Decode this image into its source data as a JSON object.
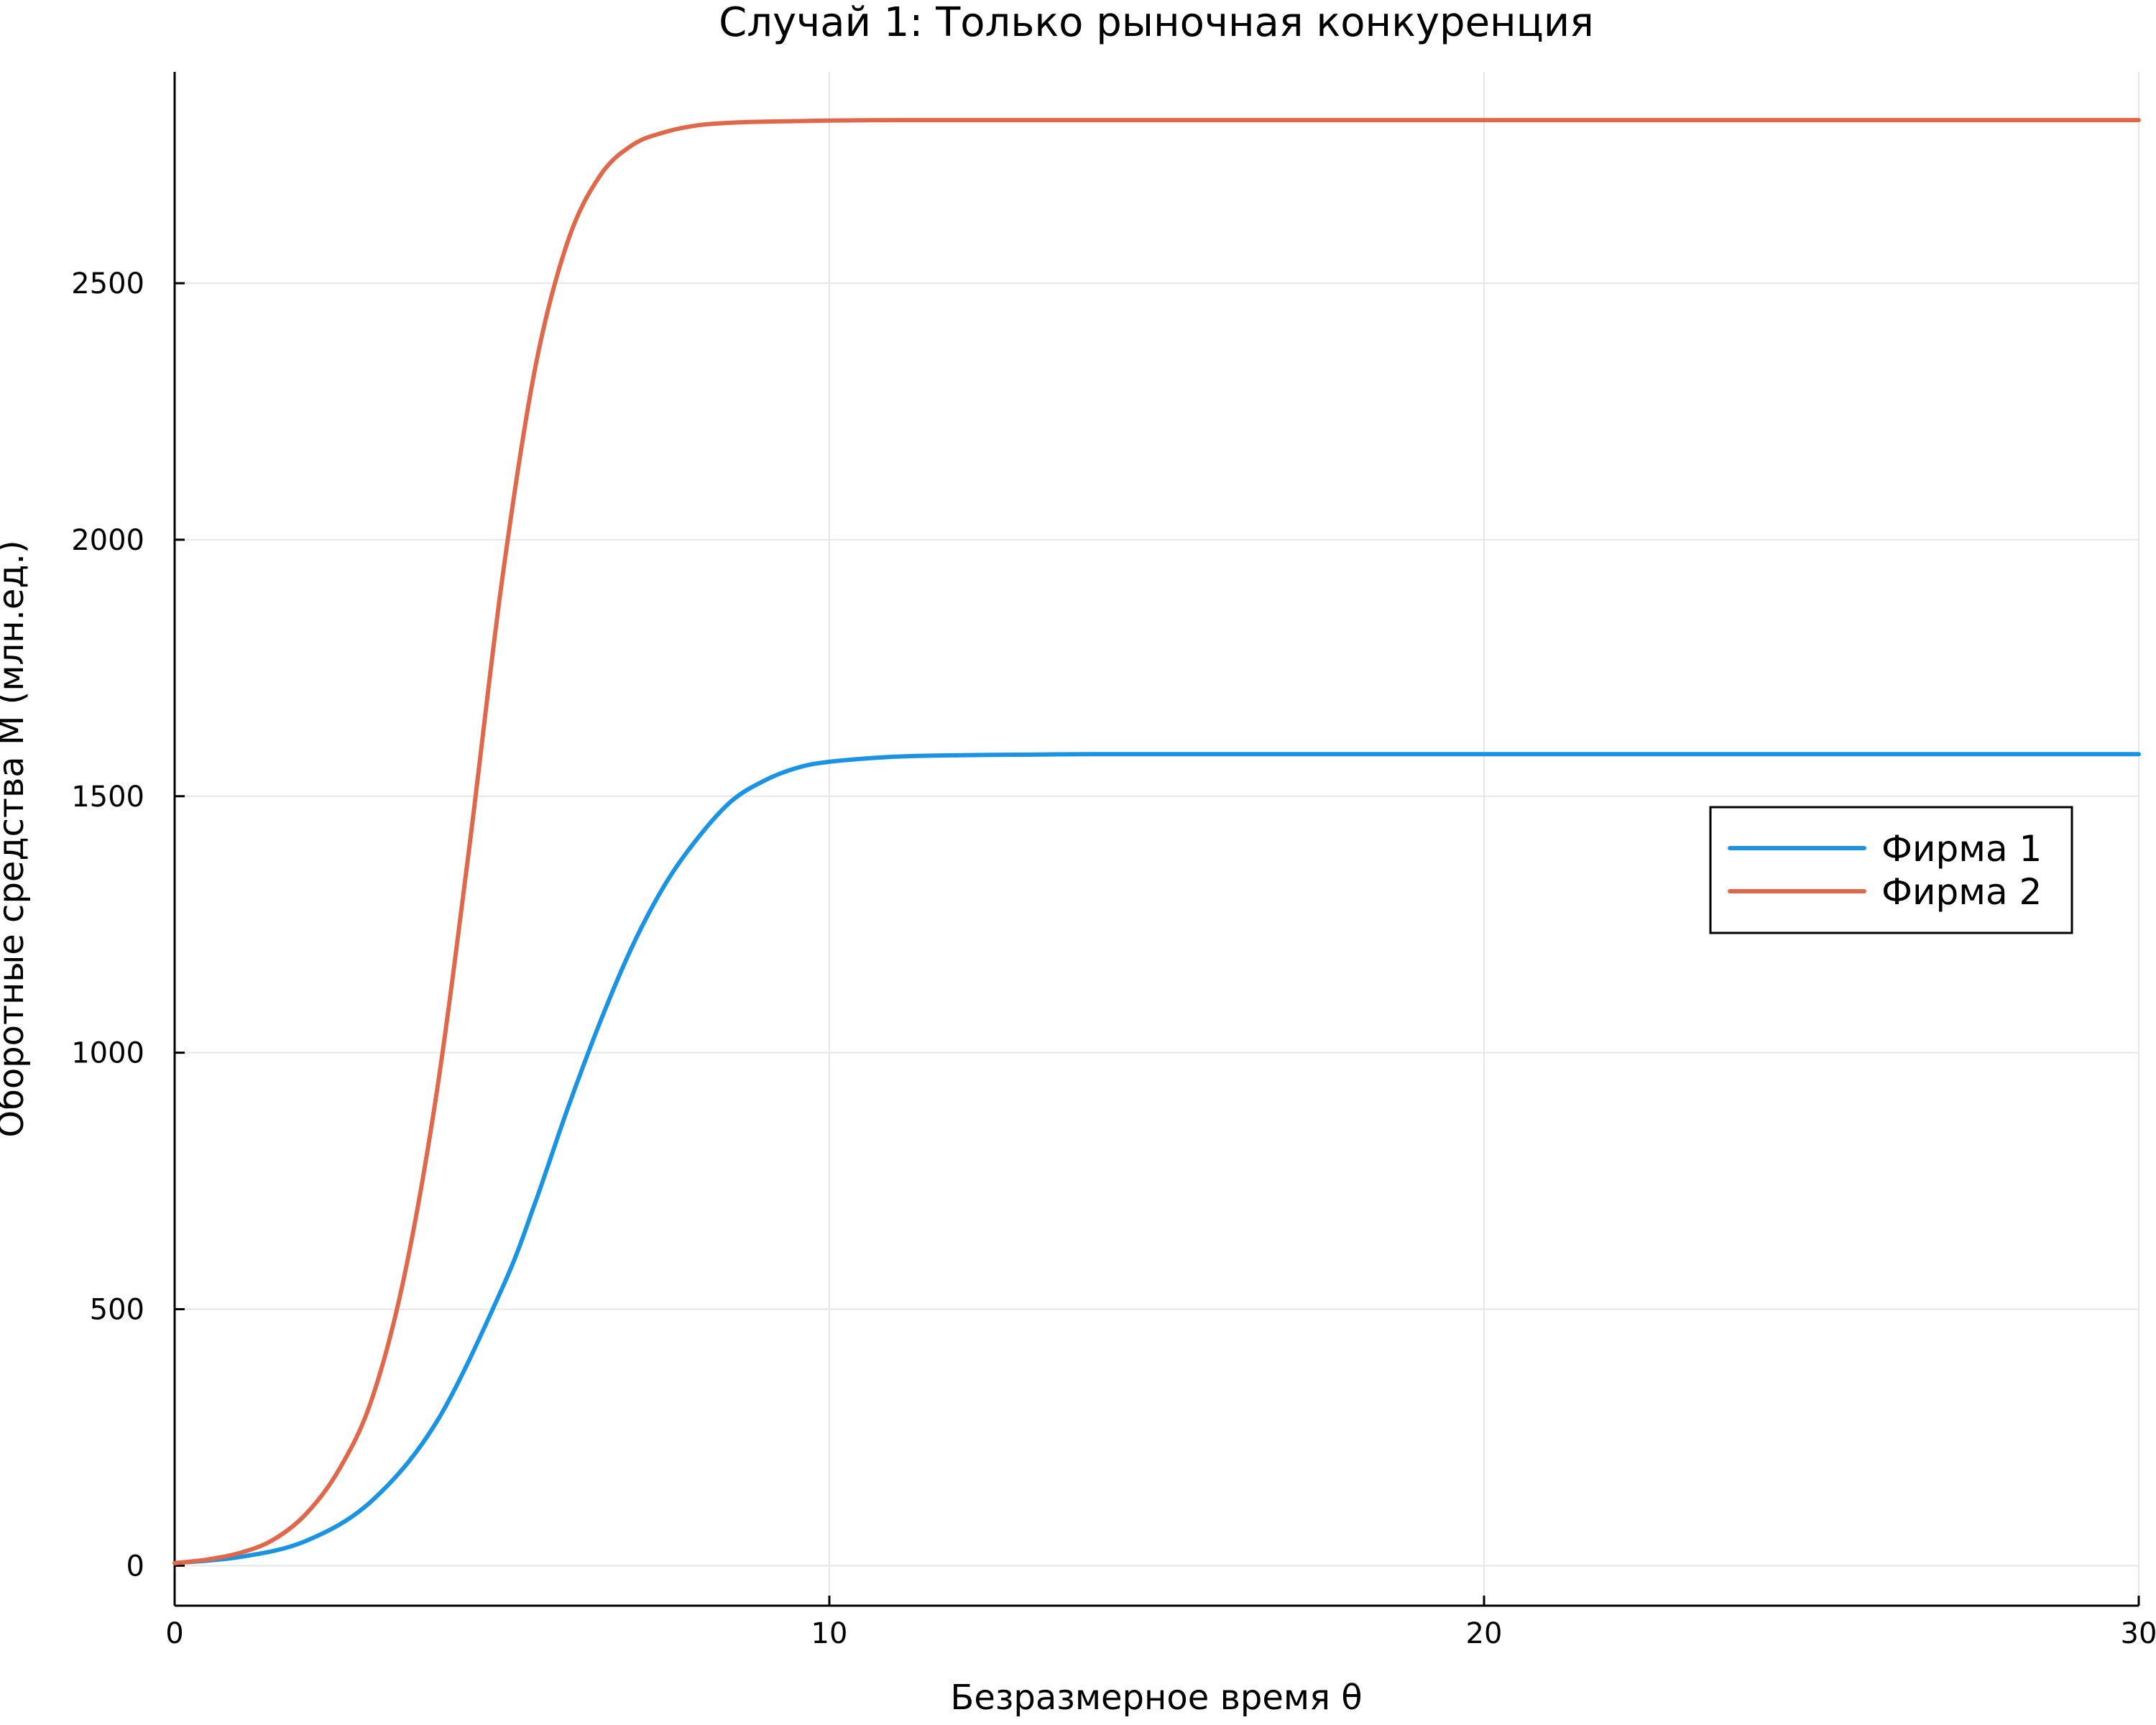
{
  "chart_data": {
    "type": "line",
    "title": "Случай 1: Только рыночная конкуренция",
    "xlabel": "Безразмерное время θ",
    "ylabel": "Оборотные средства M (млн.ед.)",
    "xlim": [
      0,
      30
    ],
    "ylim": [
      -78,
      2912
    ],
    "xticks": [
      0,
      10,
      20,
      30
    ],
    "xtick_labels": [
      "0",
      "10",
      "20",
      "30"
    ],
    "yticks": [
      0,
      500,
      1000,
      1500,
      2000,
      2500
    ],
    "ytick_labels": [
      "0",
      "500",
      "1000",
      "1500",
      "2000",
      "2500"
    ],
    "grid": true,
    "legend_position": "right",
    "series": [
      {
        "name": "Фирма 1",
        "color": "#1a93e2",
        "x": [
          0,
          1,
          2,
          3,
          4,
          5,
          5.5,
          6,
          6.5,
          7,
          7.5,
          8,
          8.5,
          9,
          9.5,
          10,
          11,
          12,
          13,
          14,
          15,
          20,
          25,
          30
        ],
        "y": [
          5,
          17,
          48,
          125,
          280,
          540,
          705,
          890,
          1060,
          1210,
          1330,
          1420,
          1490,
          1530,
          1555,
          1567,
          1577,
          1580,
          1581,
          1582,
          1582,
          1582,
          1582,
          1582
        ]
      },
      {
        "name": "Фирма 2",
        "color": "#e0684a",
        "x": [
          0,
          0.5,
          1,
          1.5,
          2,
          2.5,
          3,
          3.5,
          4,
          4.5,
          5,
          5.5,
          6,
          6.5,
          7,
          7.5,
          8,
          8.5,
          9,
          9.5,
          10,
          11,
          12,
          15,
          20,
          25,
          30
        ],
        "y": [
          5,
          12,
          25,
          50,
          100,
          185,
          320,
          560,
          920,
          1400,
          1920,
          2330,
          2580,
          2710,
          2770,
          2795,
          2808,
          2813,
          2815,
          2816,
          2817,
          2818,
          2818,
          2818,
          2818,
          2818,
          2818
        ]
      }
    ]
  }
}
